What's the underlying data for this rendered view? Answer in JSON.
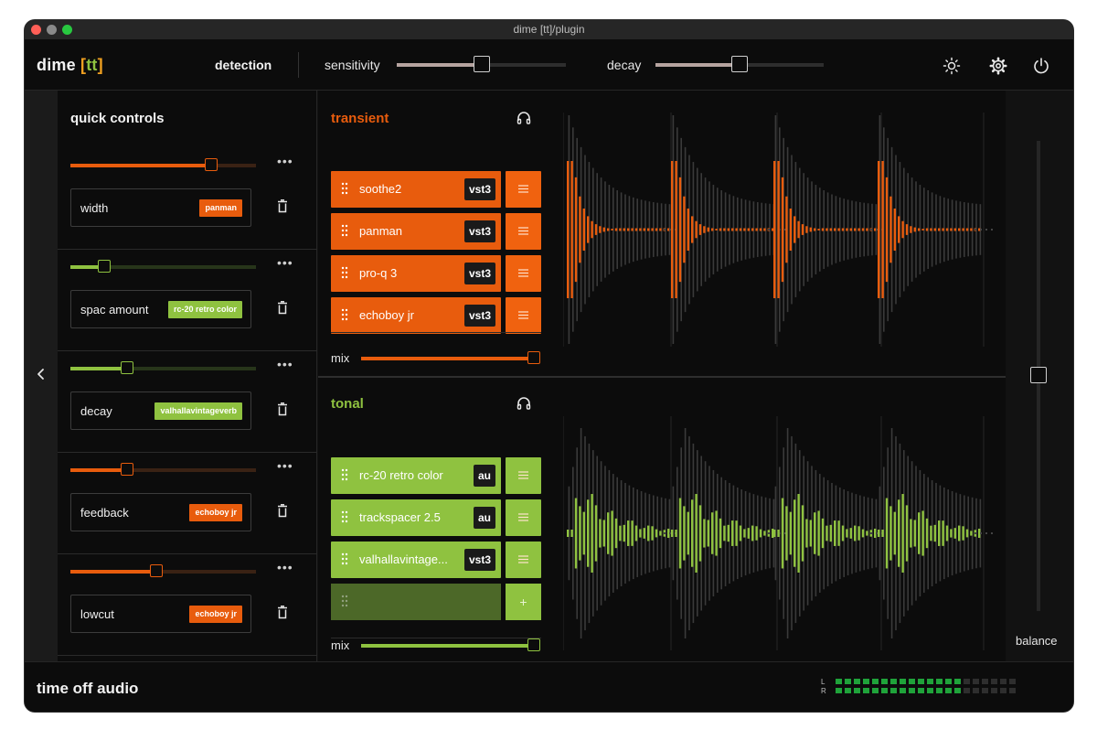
{
  "window": {
    "title": "dime [tt]/plugin"
  },
  "header": {
    "brand_name": "dime ",
    "brand_open": "[",
    "brand_tt": "tt",
    "brand_close": "]",
    "detection_label": "detection",
    "sensitivity_label": "sensitivity",
    "sensitivity_value": 0.5,
    "decay_label": "decay",
    "decay_value": 0.5
  },
  "quick_controls": {
    "title": "quick controls",
    "items": [
      {
        "name": "width",
        "plugin": "panman",
        "value": 0.78,
        "color": "#e85c0d"
      },
      {
        "name": "spac amount",
        "plugin": "rc-20 retro color",
        "value": 0.16,
        "color": "#8fc240"
      },
      {
        "name": "decay",
        "plugin": "valhallavintageverb",
        "value": 0.29,
        "color": "#8fc240"
      },
      {
        "name": "feedback",
        "plugin": "echoboy jr",
        "value": 0.29,
        "color": "#e85c0d"
      },
      {
        "name": "lowcut",
        "plugin": "echoboy jr",
        "value": 0.46,
        "color": "#e85c0d"
      }
    ]
  },
  "transient": {
    "title": "transient",
    "color": "#e85c0d",
    "plugins": [
      {
        "name": "soothe2",
        "format": "vst3"
      },
      {
        "name": "panman",
        "format": "vst3"
      },
      {
        "name": "pro-q 3",
        "format": "vst3"
      },
      {
        "name": "echoboy jr",
        "format": "vst3"
      }
    ],
    "mix_label": "mix",
    "mix_value": 1.0
  },
  "tonal": {
    "title": "tonal",
    "color": "#8fc240",
    "plugins": [
      {
        "name": "rc-20 retro color",
        "format": "au"
      },
      {
        "name": "trackspacer 2.5",
        "format": "au"
      },
      {
        "name": "valhallavintage...",
        "format": "vst3"
      }
    ],
    "add_label": "+",
    "mix_label": "mix",
    "mix_value": 1.0
  },
  "balance": {
    "label": "balance",
    "value": 0.5
  },
  "footer": {
    "brand": "time off audio",
    "meter_left_label": "L",
    "meter_right_label": "R",
    "meter_left_level": 0.7,
    "meter_right_level": 0.7
  },
  "icons": {
    "brightness": "brightness-icon",
    "settings": "gear-icon",
    "power": "power-icon",
    "collapse": "chevron-left-icon",
    "headphones": "headphones-icon",
    "trash": "trash-icon",
    "grip": "drag-handle-icon",
    "menu": "menu-icon"
  }
}
